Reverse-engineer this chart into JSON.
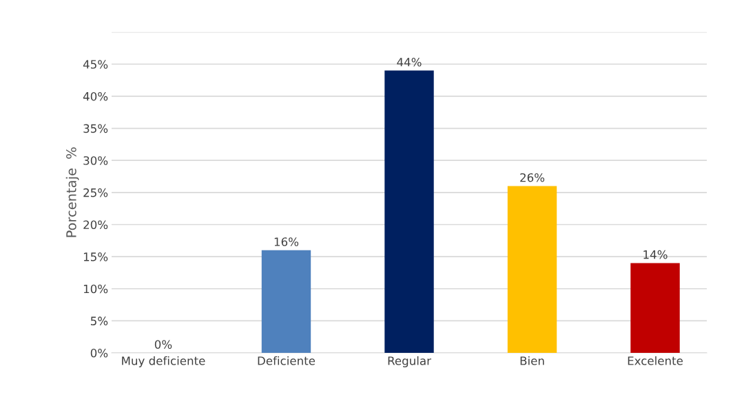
{
  "chart_data": {
    "type": "bar",
    "ylabel": "Porcentaje  %",
    "categories": [
      "Muy deficiente",
      "Deficiente",
      "Regular",
      "Bien",
      "Excelente"
    ],
    "values": [
      0,
      16,
      44,
      26,
      14
    ],
    "colors": [
      "#c00000",
      "#4f81bd",
      "#002060",
      "#ffc000",
      "#c00000"
    ],
    "value_labels": [
      "0%",
      "16%",
      "44%",
      "26%",
      "14%"
    ],
    "ylim": [
      0,
      50
    ],
    "yticks": [
      {
        "value": 0,
        "label": "0%"
      },
      {
        "value": 5,
        "label": "5%"
      },
      {
        "value": 10,
        "label": "10%"
      },
      {
        "value": 15,
        "label": "15%"
      },
      {
        "value": 20,
        "label": "20%"
      },
      {
        "value": 25,
        "label": "25%"
      },
      {
        "value": 30,
        "label": "30%"
      },
      {
        "value": 35,
        "label": "35%"
      },
      {
        "value": 40,
        "label": "40%"
      },
      {
        "value": 45,
        "label": "45%"
      },
      {
        "value": 50,
        "label": null
      }
    ],
    "grid": "y",
    "legend": false
  }
}
